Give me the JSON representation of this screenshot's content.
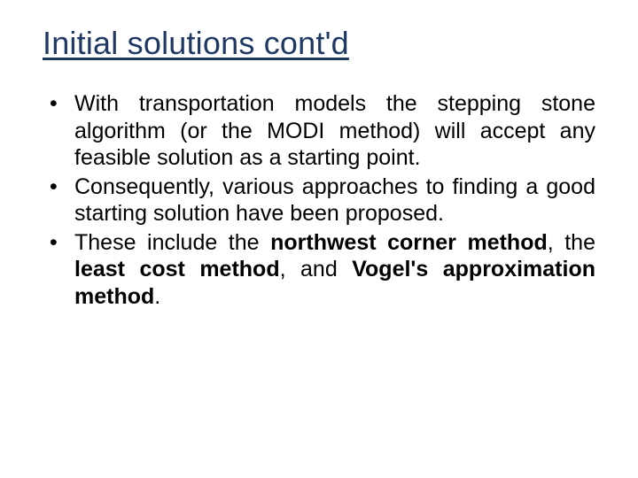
{
  "slide": {
    "title": "Initial solutions cont'd",
    "title_color": "#1f3864",
    "title_fontsize": 36,
    "body_fontsize": 25,
    "body_color": "#000000",
    "background_color": "#ffffff",
    "bullets": [
      {
        "runs": [
          {
            "text": "With transportation models the stepping stone algorithm (or the MODI method) will accept any feasible solution as a starting point.",
            "bold": false
          }
        ]
      },
      {
        "runs": [
          {
            "text": "Consequently, various approaches to finding a good starting solution have been proposed.",
            "bold": false
          }
        ]
      },
      {
        "runs": [
          {
            "text": " These include the ",
            "bold": false
          },
          {
            "text": "northwest corner method",
            "bold": true
          },
          {
            "text": ", the ",
            "bold": false
          },
          {
            "text": "least cost method",
            "bold": true
          },
          {
            "text": ", and ",
            "bold": false
          },
          {
            "text": "Vogel's approximation method",
            "bold": true
          },
          {
            "text": ".",
            "bold": false
          }
        ]
      }
    ]
  }
}
